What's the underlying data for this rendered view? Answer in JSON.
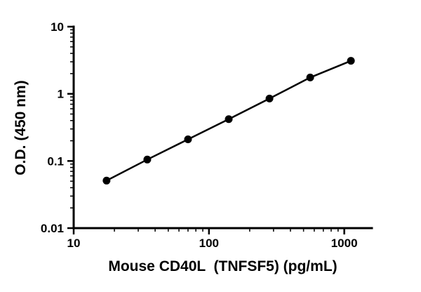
{
  "figure": {
    "background": "#ffffff"
  },
  "chart_data": {
    "type": "scatter",
    "connect_points": true,
    "title": "",
    "xlabel": "Mouse CD40L  (TNFSF5) (pg/mL)",
    "ylabel": "O.D. (450 nm)",
    "xscale": "log",
    "yscale": "log",
    "xlim": [
      10,
      1600
    ],
    "ylim": [
      0.01,
      10
    ],
    "x_ticks": [
      10,
      100,
      1000
    ],
    "x_tick_labels": [
      "10",
      "100",
      "1000"
    ],
    "y_ticks": [
      0.01,
      0.1,
      1,
      10
    ],
    "y_tick_labels": [
      "0.01",
      "0.1",
      "1",
      "10"
    ],
    "x": [
      17.5,
      35,
      70,
      140,
      280,
      560,
      1120
    ],
    "y": [
      0.051,
      0.105,
      0.21,
      0.42,
      0.85,
      1.75,
      3.1
    ],
    "grid": false,
    "legend": "none",
    "axis_color": "#000000",
    "line_color": "#000000",
    "marker_color": "#000000",
    "marker_size": 5.5,
    "line_width": 2.5,
    "axis_width": 3
  }
}
